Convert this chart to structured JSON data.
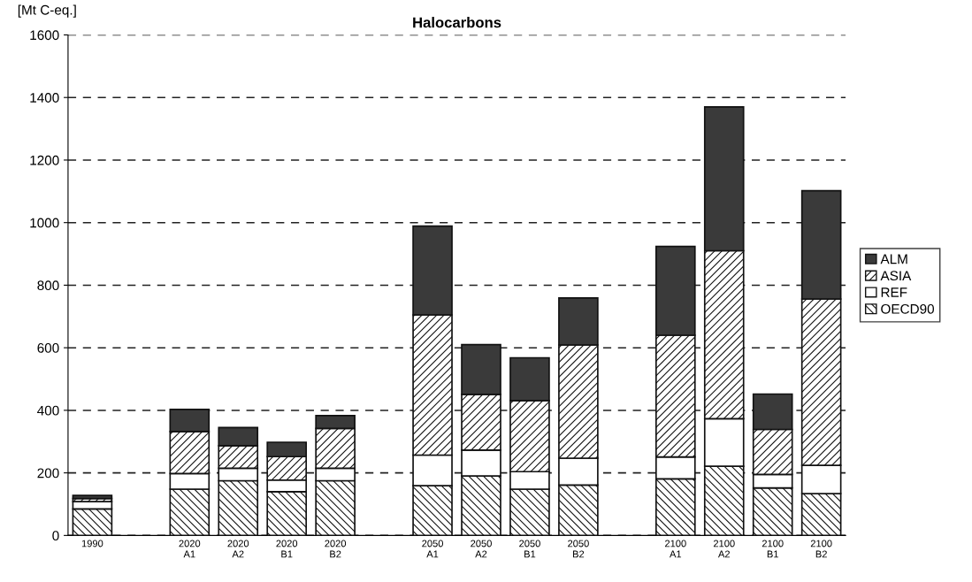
{
  "chart_data": {
    "type": "bar",
    "stacked": true,
    "title": "Halocarbons",
    "ylabel": "[Mt C-eq.]",
    "categories": [
      "1990",
      null,
      "2020\nA1",
      "2020\nA2",
      "2020\nB1",
      "2020\nB2",
      null,
      "2050\nA1",
      "2050\nA2",
      "2050\nB1",
      "2050\nB2",
      null,
      "2100\nA1",
      "2100\nA2",
      "2100\nB1",
      "2100\nB2"
    ],
    "series": [
      {
        "name": "OECD90",
        "color": "#111111",
        "values": [
          85,
          null,
          148,
          175,
          140,
          175,
          null,
          159,
          190,
          148,
          161,
          null,
          181,
          221,
          152,
          134
        ]
      },
      {
        "name": "REF",
        "color": "#ffffff",
        "values": [
          23,
          null,
          50,
          40,
          37,
          40,
          null,
          98,
          83,
          56,
          86,
          null,
          70,
          152,
          43,
          90
        ]
      },
      {
        "name": "ASIA",
        "color": "#111111",
        "values": [
          10,
          null,
          134,
          72,
          75,
          127,
          null,
          448,
          178,
          227,
          362,
          null,
          389,
          537,
          144,
          532
        ]
      },
      {
        "name": "ALM",
        "color": "#3a3a3a",
        "values": [
          10,
          null,
          71,
          58,
          46,
          41,
          null,
          284,
          159,
          137,
          150,
          null,
          284,
          460,
          113,
          346
        ]
      }
    ],
    "ylim": [
      0,
      1600
    ],
    "yticks": [
      0,
      200,
      400,
      600,
      800,
      1000,
      1200,
      1400,
      1600
    ],
    "grid": "y",
    "legend": "right"
  }
}
